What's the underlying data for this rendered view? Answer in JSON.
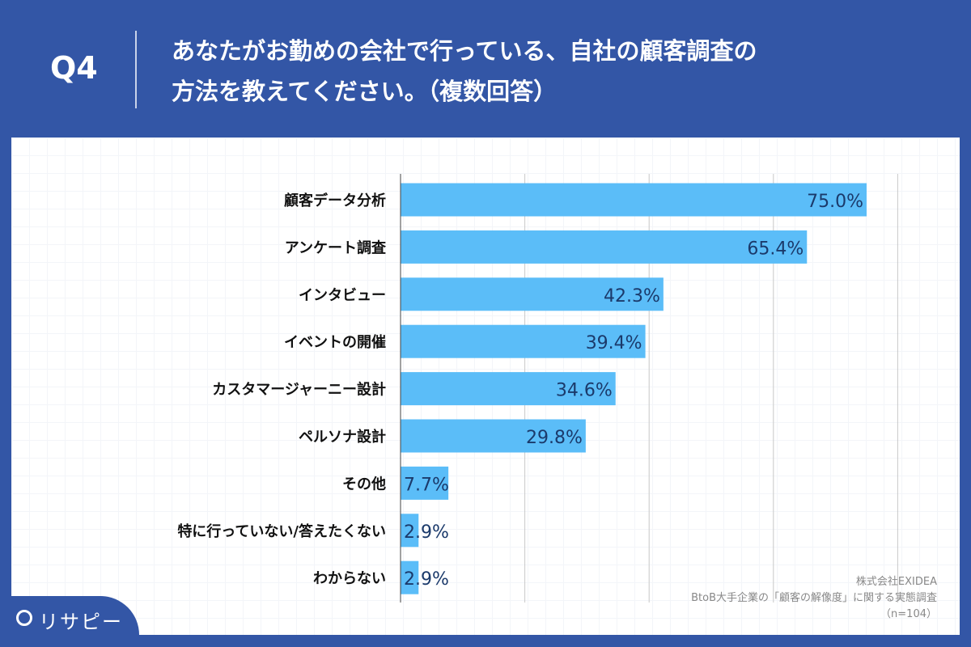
{
  "header": {
    "q_label": "Q4",
    "title_line1": "あなたがお勤めの会社で行っている、自社の顧客調査の",
    "title_line2": "方法を教えてください。（複数回答）"
  },
  "chart_data": {
    "type": "bar",
    "orientation": "horizontal",
    "categories": [
      "顧客データ分析",
      "アンケート調査",
      "インタビュー",
      "イベントの開催",
      "カスタマージャーニー設計",
      "ペルソナ設計",
      "その他",
      "特に行っていない/答えたくない",
      "わからない"
    ],
    "values": [
      75.0,
      65.4,
      42.3,
      39.4,
      34.6,
      29.8,
      7.7,
      2.9,
      2.9
    ],
    "value_labels": [
      "75.0%",
      "65.4%",
      "42.3%",
      "39.4%",
      "34.6%",
      "29.8%",
      "7.7%",
      "2.9%",
      "2.9%"
    ],
    "xlim": [
      0,
      80
    ],
    "grid": true,
    "gridlines_at": [
      20,
      40,
      60,
      80
    ],
    "colors": {
      "bar": "#5bbdf8",
      "value_text": "#1b3a6b"
    }
  },
  "source": {
    "company": "株式会社EXIDEA",
    "survey": "BtoB大手企業の「顧客の解像度」に関する実態調査",
    "n": "（n=104）"
  },
  "logo": {
    "text": "リサピー"
  }
}
